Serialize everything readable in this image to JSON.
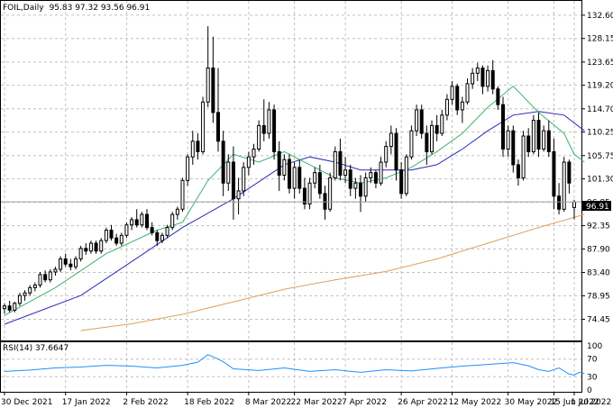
{
  "header": {
    "symbol": "FOIL,Daily",
    "ohlc": "95.83 97.32 93.56 96.91"
  },
  "rsi_label": "RSI(14) 37.6647",
  "colors": {
    "background": "#ffffff",
    "grid": "#c0c0c0",
    "candle": "#000000",
    "ma_fast": "#3cb371",
    "ma_mid": "#2b2bb5",
    "ma_slow": "#e0a060",
    "rsi": "#1e90ff",
    "last_price_line": "#a0a0a0"
  },
  "chart_data": [
    {
      "type": "candlestick",
      "title": "FOIL,Daily",
      "ohlc_latest": {
        "open": 95.83,
        "high": 97.32,
        "low": 93.56,
        "close": 96.91
      },
      "last_price_label": "96.91",
      "y_ticks": [
        "132.60",
        "128.15",
        "123.65",
        "119.20",
        "114.70",
        "110.25",
        "105.75",
        "101.30",
        "96.85",
        "92.35",
        "87.90",
        "83.40",
        "78.95",
        "74.45"
      ],
      "ylim": [
        72.3,
        134.3
      ],
      "x_ticks": [
        "30 Dec 2021",
        "17 Jan 2022",
        "2 Feb 2022",
        "18 Feb 2022",
        "8 Mar 2022",
        "22 Mar 2022",
        "7 Apr 2022",
        "26 Apr 2022",
        "12 May 2022",
        "30 May 2022",
        "15 Jun 2022",
        "1 Jul 2022"
      ],
      "grid": true,
      "candles": [
        [
          76.5,
          77.5,
          75.5,
          77.0
        ],
        [
          77.0,
          78.0,
          75.8,
          76.2
        ],
        [
          76.2,
          77.8,
          75.8,
          77.5
        ],
        [
          77.5,
          79.5,
          77.0,
          79.0
        ],
        [
          79.0,
          80.0,
          78.0,
          79.5
        ],
        [
          79.5,
          81.0,
          79.0,
          80.5
        ],
        [
          80.5,
          81.5,
          79.8,
          81.0
        ],
        [
          81.0,
          83.5,
          80.5,
          83.0
        ],
        [
          83.0,
          83.8,
          81.5,
          82.0
        ],
        [
          82.0,
          84.0,
          81.5,
          83.5
        ],
        [
          83.5,
          84.5,
          82.8,
          84.0
        ],
        [
          84.0,
          86.5,
          83.5,
          86.0
        ],
        [
          86.0,
          87.0,
          84.5,
          85.0
        ],
        [
          85.0,
          86.0,
          83.8,
          84.5
        ],
        [
          84.5,
          86.5,
          84.0,
          86.0
        ],
        [
          86.0,
          88.5,
          85.5,
          88.0
        ],
        [
          88.0,
          89.0,
          86.8,
          87.5
        ],
        [
          87.5,
          89.5,
          87.0,
          89.0
        ],
        [
          89.0,
          89.5,
          87.0,
          87.5
        ],
        [
          87.5,
          90.0,
          87.0,
          89.5
        ],
        [
          89.5,
          92.0,
          89.0,
          91.5
        ],
        [
          91.5,
          92.5,
          89.5,
          90.0
        ],
        [
          90.0,
          90.8,
          88.5,
          89.0
        ],
        [
          89.0,
          91.0,
          88.5,
          90.5
        ],
        [
          90.5,
          93.0,
          90.0,
          92.5
        ],
        [
          92.5,
          94.0,
          91.5,
          93.5
        ],
        [
          93.5,
          95.5,
          92.0,
          92.5
        ],
        [
          92.5,
          95.0,
          92.0,
          94.5
        ],
        [
          94.5,
          95.5,
          91.5,
          92.0
        ],
        [
          92.0,
          93.0,
          90.5,
          91.0
        ],
        [
          91.0,
          91.5,
          88.5,
          89.5
        ],
        [
          89.5,
          91.0,
          89.0,
          90.5
        ],
        [
          90.5,
          92.5,
          90.0,
          92.0
        ],
        [
          92.0,
          95.0,
          91.5,
          94.5
        ],
        [
          94.5,
          96.0,
          93.5,
          95.5
        ],
        [
          95.5,
          101.5,
          95.0,
          101.0
        ],
        [
          101.0,
          106.0,
          100.0,
          105.5
        ],
        [
          105.5,
          110.5,
          104.0,
          108.5
        ],
        [
          108.5,
          110.0,
          105.0,
          106.5
        ],
        [
          106.5,
          117.0,
          106.0,
          116.0
        ],
        [
          116.0,
          130.5,
          115.0,
          122.5
        ],
        [
          122.5,
          128.5,
          112.0,
          114.0
        ],
        [
          114.0,
          122.5,
          106.5,
          108.5
        ],
        [
          108.5,
          110.5,
          98.0,
          100.5
        ],
        [
          100.5,
          106.0,
          99.0,
          104.5
        ],
        [
          104.5,
          107.5,
          93.5,
          97.5
        ],
        [
          97.5,
          101.5,
          94.5,
          99.0
        ],
        [
          99.0,
          104.5,
          98.0,
          103.5
        ],
        [
          103.5,
          106.5,
          102.0,
          105.5
        ],
        [
          105.5,
          108.0,
          104.0,
          107.0
        ],
        [
          107.0,
          112.5,
          106.5,
          111.5
        ],
        [
          111.5,
          116.5,
          108.5,
          110.0
        ],
        [
          110.0,
          116.0,
          109.0,
          114.5
        ],
        [
          114.5,
          115.5,
          105.0,
          106.5
        ],
        [
          106.5,
          108.5,
          99.0,
          102.0
        ],
        [
          102.0,
          106.0,
          101.0,
          105.0
        ],
        [
          105.0,
          106.0,
          98.5,
          99.5
        ],
        [
          99.5,
          104.5,
          97.5,
          103.5
        ],
        [
          103.5,
          105.0,
          98.5,
          99.5
        ],
        [
          99.5,
          101.5,
          95.5,
          96.5
        ],
        [
          96.5,
          101.5,
          95.5,
          100.5
        ],
        [
          100.5,
          103.5,
          99.5,
          102.5
        ],
        [
          102.5,
          104.0,
          97.5,
          98.5
        ],
        [
          98.5,
          100.0,
          93.5,
          95.5
        ],
        [
          95.5,
          102.5,
          95.0,
          101.5
        ],
        [
          101.5,
          107.5,
          101.0,
          106.5
        ],
        [
          106.5,
          109.0,
          101.0,
          102.0
        ],
        [
          102.0,
          105.5,
          100.5,
          103.0
        ],
        [
          103.0,
          104.0,
          98.0,
          99.5
        ],
        [
          99.5,
          101.5,
          97.5,
          100.5
        ],
        [
          100.5,
          102.0,
          95.0,
          98.0
        ],
        [
          98.0,
          102.5,
          97.0,
          101.5
        ],
        [
          101.5,
          103.5,
          100.5,
          102.5
        ],
        [
          102.5,
          103.0,
          99.5,
          100.5
        ],
        [
          100.5,
          105.5,
          100.0,
          104.5
        ],
        [
          104.5,
          108.5,
          103.5,
          107.5
        ],
        [
          107.5,
          111.5,
          106.0,
          110.0
        ],
        [
          110.0,
          111.0,
          101.0,
          103.0
        ],
        [
          103.0,
          104.5,
          97.5,
          98.5
        ],
        [
          98.5,
          106.0,
          98.0,
          105.5
        ],
        [
          105.5,
          111.5,
          105.0,
          110.5
        ],
        [
          110.5,
          115.5,
          109.5,
          114.5
        ],
        [
          114.5,
          115.5,
          109.0,
          110.0
        ],
        [
          110.0,
          111.5,
          104.0,
          106.5
        ],
        [
          106.5,
          112.5,
          106.0,
          111.5
        ],
        [
          111.5,
          113.5,
          108.5,
          110.0
        ],
        [
          110.0,
          114.5,
          109.5,
          113.5
        ],
        [
          113.5,
          117.5,
          112.5,
          116.5
        ],
        [
          116.5,
          120.0,
          115.5,
          119.0
        ],
        [
          119.0,
          119.5,
          113.5,
          114.5
        ],
        [
          114.5,
          117.0,
          112.0,
          116.0
        ],
        [
          116.0,
          120.5,
          115.5,
          119.5
        ],
        [
          119.5,
          122.5,
          118.5,
          121.5
        ],
        [
          121.5,
          123.5,
          120.0,
          122.5
        ],
        [
          122.5,
          123.0,
          117.5,
          119.0
        ],
        [
          119.0,
          123.0,
          118.0,
          122.0
        ],
        [
          122.0,
          124.0,
          117.5,
          118.5
        ],
        [
          118.5,
          119.0,
          114.5,
          115.5
        ],
        [
          115.5,
          117.0,
          105.5,
          107.0
        ],
        [
          107.0,
          111.5,
          105.5,
          110.5
        ],
        [
          110.5,
          111.5,
          102.5,
          104.0
        ],
        [
          104.0,
          105.0,
          100.0,
          101.5
        ],
        [
          101.5,
          110.5,
          101.0,
          109.5
        ],
        [
          109.5,
          111.0,
          105.5,
          106.5
        ],
        [
          106.5,
          113.5,
          106.0,
          112.5
        ],
        [
          112.5,
          114.0,
          105.5,
          107.0
        ],
        [
          107.0,
          111.5,
          106.5,
          110.5
        ],
        [
          110.5,
          112.5,
          105.5,
          106.5
        ],
        [
          106.5,
          109.0,
          95.5,
          98.0
        ],
        [
          98.0,
          100.5,
          94.5,
          95.5
        ],
        [
          95.5,
          105.5,
          95.0,
          104.5
        ],
        [
          104.5,
          105.0,
          98.5,
          100.5
        ],
        [
          95.83,
          97.32,
          93.56,
          96.91
        ]
      ],
      "series": [
        {
          "name": "",
          "color": "#3cb371",
          "values": [
            [
              0,
              75.2
            ],
            [
              10,
              80.5
            ],
            [
              20,
              87.0
            ],
            [
              30,
              91.5
            ],
            [
              35,
              93.0
            ],
            [
              40,
              101.0
            ],
            [
              45,
              106.0
            ],
            [
              50,
              104.5
            ],
            [
              55,
              106.5
            ],
            [
              60,
              104.0
            ],
            [
              65,
              101.5
            ],
            [
              70,
              100.5
            ],
            [
              75,
              101.5
            ],
            [
              80,
              103.5
            ],
            [
              85,
              106.5
            ],
            [
              90,
              110.0
            ],
            [
              95,
              115.0
            ],
            [
              100,
              119.0
            ],
            [
              105,
              114.0
            ],
            [
              110,
              110.0
            ],
            [
              112,
              106.0
            ],
            [
              114,
              104.5
            ]
          ]
        },
        {
          "name": "",
          "color": "#2b2bb5",
          "values": [
            [
              0,
              73.5
            ],
            [
              15,
              79.0
            ],
            [
              25,
              85.5
            ],
            [
              35,
              92.0
            ],
            [
              45,
              97.5
            ],
            [
              55,
              104.0
            ],
            [
              60,
              105.5
            ],
            [
              65,
              104.5
            ],
            [
              70,
              103.0
            ],
            [
              80,
              103.0
            ],
            [
              85,
              104.0
            ],
            [
              90,
              107.0
            ],
            [
              95,
              110.5
            ],
            [
              100,
              113.5
            ],
            [
              105,
              114.2
            ],
            [
              110,
              113.5
            ],
            [
              114,
              110.5
            ]
          ]
        },
        {
          "name": "",
          "color": "#e0a060",
          "values": [
            [
              15,
              72.3
            ],
            [
              25,
              73.6
            ],
            [
              35,
              75.4
            ],
            [
              45,
              77.8
            ],
            [
              55,
              80.2
            ],
            [
              65,
              82.0
            ],
            [
              75,
              83.6
            ],
            [
              85,
              86.0
            ],
            [
              95,
              89.0
            ],
            [
              105,
              92.0
            ],
            [
              114,
              94.5
            ]
          ]
        }
      ]
    },
    {
      "type": "line",
      "title": "RSI(14) 37.6647",
      "y_ticks": [
        "100",
        "70",
        "30",
        "0"
      ],
      "ylim": [
        0,
        100
      ],
      "grid": true,
      "series": [
        {
          "name": "",
          "color": "#1e90ff",
          "values": [
            [
              0,
              42
            ],
            [
              5,
              45
            ],
            [
              10,
              50
            ],
            [
              15,
              52
            ],
            [
              20,
              56
            ],
            [
              25,
              54
            ],
            [
              30,
              50
            ],
            [
              35,
              56
            ],
            [
              38,
              63
            ],
            [
              40,
              80
            ],
            [
              42,
              70
            ],
            [
              43,
              64
            ],
            [
              45,
              48
            ],
            [
              50,
              44
            ],
            [
              55,
              50
            ],
            [
              60,
              42
            ],
            [
              65,
              46
            ],
            [
              70,
              40
            ],
            [
              75,
              46
            ],
            [
              80,
              43
            ],
            [
              85,
              49
            ],
            [
              90,
              54
            ],
            [
              95,
              58
            ],
            [
              100,
              62
            ],
            [
              103,
              55
            ],
            [
              105,
              46
            ],
            [
              107,
              42
            ],
            [
              109,
              50
            ],
            [
              111,
              36
            ],
            [
              112,
              34
            ],
            [
              113,
              40
            ],
            [
              114,
              37.6647
            ]
          ]
        }
      ]
    }
  ]
}
